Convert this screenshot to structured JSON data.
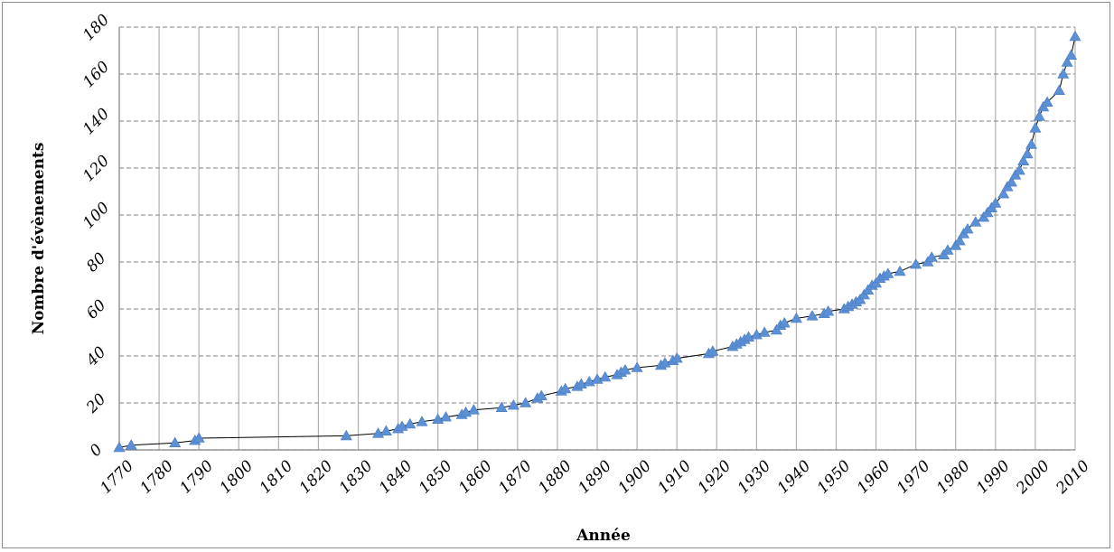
{
  "chart_data": {
    "type": "line",
    "title": "",
    "xlabel": "Année",
    "ylabel": "Nombre d'évènements",
    "xlim": [
      1770,
      2010
    ],
    "ylim": [
      0,
      180
    ],
    "x_ticks": [
      1770,
      1780,
      1790,
      1800,
      1810,
      1820,
      1830,
      1840,
      1850,
      1860,
      1870,
      1880,
      1890,
      1900,
      1910,
      1920,
      1930,
      1940,
      1950,
      1960,
      1970,
      1980,
      1990,
      2000,
      2010
    ],
    "y_ticks": [
      0,
      20,
      40,
      60,
      80,
      100,
      120,
      140,
      160,
      180
    ],
    "grid": {
      "vertical": "solid",
      "horizontal": "dashed"
    },
    "legend": "none",
    "colors": {
      "marker": "#5b8fd6",
      "line": "#000000",
      "grid_v": "#b0b0b0",
      "grid_h": "#9a9a9a"
    },
    "series": [
      {
        "marker": "triangle",
        "points": [
          [
            1770,
            1
          ],
          [
            1773,
            2
          ],
          [
            1784,
            3
          ],
          [
            1789,
            4
          ],
          [
            1790,
            5
          ],
          [
            1827,
            6
          ],
          [
            1835,
            7
          ],
          [
            1837,
            8
          ],
          [
            1840,
            9
          ],
          [
            1841,
            10
          ],
          [
            1843,
            11
          ],
          [
            1846,
            12
          ],
          [
            1850,
            13
          ],
          [
            1852,
            14
          ],
          [
            1856,
            15
          ],
          [
            1857,
            16
          ],
          [
            1859,
            17
          ],
          [
            1866,
            18
          ],
          [
            1869,
            19
          ],
          [
            1872,
            20
          ],
          [
            1875,
            22
          ],
          [
            1876,
            23
          ],
          [
            1881,
            25
          ],
          [
            1882,
            26
          ],
          [
            1885,
            27
          ],
          [
            1886,
            28
          ],
          [
            1888,
            29
          ],
          [
            1890,
            30
          ],
          [
            1892,
            31
          ],
          [
            1895,
            32
          ],
          [
            1896,
            33
          ],
          [
            1897,
            34
          ],
          [
            1900,
            35
          ],
          [
            1906,
            36
          ],
          [
            1907,
            37
          ],
          [
            1909,
            38
          ],
          [
            1910,
            39
          ],
          [
            1918,
            41
          ],
          [
            1919,
            42
          ],
          [
            1924,
            44
          ],
          [
            1925,
            45
          ],
          [
            1926,
            46
          ],
          [
            1927,
            47
          ],
          [
            1928,
            48
          ],
          [
            1930,
            49
          ],
          [
            1932,
            50
          ],
          [
            1935,
            51
          ],
          [
            1936,
            53
          ],
          [
            1937,
            54
          ],
          [
            1940,
            56
          ],
          [
            1944,
            57
          ],
          [
            1947,
            58
          ],
          [
            1948,
            59
          ],
          [
            1952,
            60
          ],
          [
            1953,
            61
          ],
          [
            1954,
            62
          ],
          [
            1955,
            63
          ],
          [
            1956,
            64
          ],
          [
            1957,
            66
          ],
          [
            1958,
            68
          ],
          [
            1959,
            70
          ],
          [
            1960,
            71
          ],
          [
            1961,
            73
          ],
          [
            1962,
            74
          ],
          [
            1963,
            75
          ],
          [
            1966,
            76
          ],
          [
            1970,
            79
          ],
          [
            1973,
            80
          ],
          [
            1974,
            82
          ],
          [
            1977,
            83
          ],
          [
            1978,
            85
          ],
          [
            1980,
            87
          ],
          [
            1981,
            89
          ],
          [
            1982,
            92
          ],
          [
            1983,
            94
          ],
          [
            1985,
            97
          ],
          [
            1987,
            99
          ],
          [
            1988,
            101
          ],
          [
            1989,
            103
          ],
          [
            1990,
            105
          ],
          [
            1992,
            109
          ],
          [
            1993,
            112
          ],
          [
            1994,
            114
          ],
          [
            1995,
            117
          ],
          [
            1996,
            119
          ],
          [
            1997,
            123
          ],
          [
            1998,
            126
          ],
          [
            1999,
            130
          ],
          [
            2000,
            137
          ],
          [
            2001,
            142
          ],
          [
            2002,
            146
          ],
          [
            2003,
            148
          ],
          [
            2006,
            153
          ],
          [
            2007,
            160
          ],
          [
            2008,
            165
          ],
          [
            2009,
            168
          ],
          [
            2010,
            176
          ]
        ]
      }
    ]
  }
}
